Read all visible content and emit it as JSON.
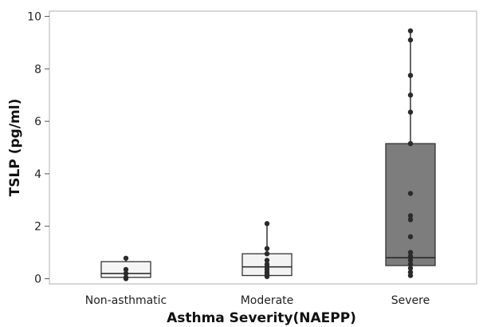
{
  "chart_data": {
    "type": "box",
    "title": "",
    "xlabel": "Asthma Severity(NAEPP)",
    "ylabel": "TSLP (pg/ml)",
    "ylim": [
      -0.2,
      10.2
    ],
    "yticks": [
      0,
      2,
      4,
      6,
      8,
      10
    ],
    "grid": false,
    "categories": [
      "Non-asthmatic",
      "Moderate",
      "Severe"
    ],
    "box_colors": [
      "#f5f5f5",
      "#f3f3f3",
      "#7d7d7d"
    ],
    "boxes": [
      {
        "category": "Non-asthmatic",
        "q1": 0.05,
        "median": 0.2,
        "q3": 0.65,
        "whisker_low": 0.0,
        "whisker_high": 0.78,
        "points": [
          0.0,
          0.05,
          0.2,
          0.35,
          0.78
        ]
      },
      {
        "category": "Moderate",
        "q1": 0.12,
        "median": 0.45,
        "q3": 0.95,
        "whisker_low": 0.08,
        "whisker_high": 2.1,
        "points": [
          0.08,
          0.15,
          0.25,
          0.35,
          0.45,
          0.55,
          0.7,
          0.95,
          1.15,
          2.1
        ]
      },
      {
        "category": "Severe",
        "q1": 0.5,
        "median": 0.8,
        "q3": 5.15,
        "whisker_low": 0.12,
        "whisker_high": 9.45,
        "points": [
          0.12,
          0.25,
          0.4,
          0.55,
          0.7,
          0.85,
          1.0,
          1.6,
          2.25,
          2.4,
          3.25,
          5.15,
          6.35,
          7.0,
          7.75,
          9.1,
          9.45
        ]
      }
    ]
  }
}
